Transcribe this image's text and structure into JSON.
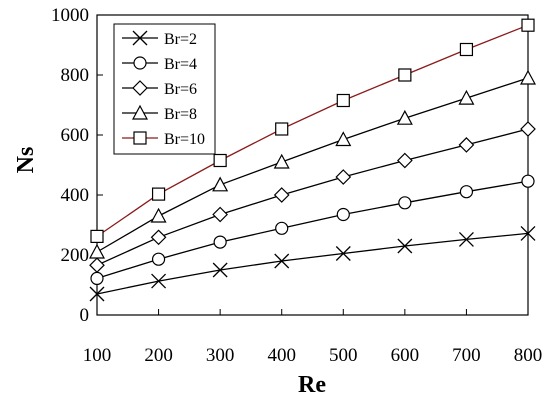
{
  "chart_data": {
    "type": "line",
    "xlabel": "Re",
    "ylabel": "Ns",
    "xlim": [
      100,
      800
    ],
    "ylim": [
      0,
      1000
    ],
    "x_ticks": [
      100,
      200,
      300,
      400,
      500,
      600,
      700,
      800
    ],
    "y_ticks": [
      0,
      200,
      400,
      600,
      800,
      1000
    ],
    "grid": false,
    "legend_position": "top-left",
    "x": [
      100,
      200,
      300,
      400,
      500,
      600,
      700,
      800
    ],
    "series": [
      {
        "name": "Br=2",
        "marker": "x",
        "color": "#000000",
        "values": [
          70,
          113,
          150,
          180,
          205,
          230,
          252,
          272
        ]
      },
      {
        "name": "Br=4",
        "marker": "circle",
        "color": "#000000",
        "values": [
          122,
          186,
          243,
          289,
          335,
          374,
          411,
          446
        ]
      },
      {
        "name": "Br=6",
        "marker": "diamond",
        "color": "#000000",
        "values": [
          166,
          259,
          335,
          400,
          460,
          515,
          567,
          620
        ]
      },
      {
        "name": "Br=8",
        "marker": "triangle",
        "color": "#000000",
        "values": [
          210,
          330,
          434,
          510,
          585,
          656,
          723,
          790
        ]
      },
      {
        "name": "Br=10",
        "marker": "square",
        "color": "#8b1a1a",
        "values": [
          262,
          403,
          515,
          620,
          715,
          800,
          885,
          966
        ]
      }
    ]
  }
}
